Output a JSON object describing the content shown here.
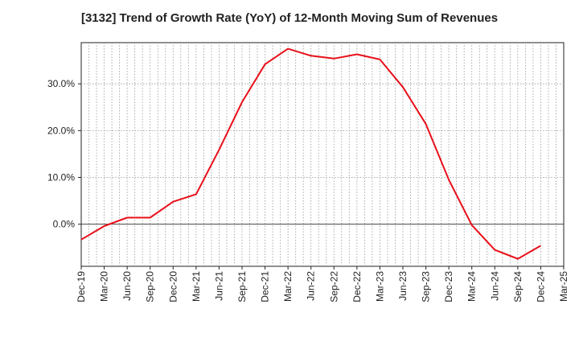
{
  "chart_data": {
    "type": "line",
    "title": "[3132]  Trend of Growth Rate (YoY) of 12-Month Moving Sum of Revenues",
    "xlabel": "",
    "ylabel": "",
    "x_tick_labels": [
      "Dec-19",
      "Mar-20",
      "Jun-20",
      "Sep-20",
      "Dec-20",
      "Mar-21",
      "Jun-21",
      "Sep-21",
      "Dec-21",
      "Mar-22",
      "Jun-22",
      "Sep-22",
      "Dec-22",
      "Mar-23",
      "Jun-23",
      "Sep-23",
      "Dec-23",
      "Mar-24",
      "Jun-24",
      "Sep-24",
      "Dec-24",
      "Mar-25"
    ],
    "y_ticks": [
      0,
      10,
      20,
      30
    ],
    "y_tick_labels": [
      "0.0%",
      "10.0%",
      "20.0%",
      "30.0%"
    ],
    "ylim": [
      -9,
      38.8
    ],
    "grid": true,
    "series": [
      {
        "color": "#e8101a",
        "x": [
          "Dec-19",
          "Mar-20",
          "Jun-20",
          "Sep-20",
          "Dec-20",
          "Mar-21",
          "Jun-21",
          "Sep-21",
          "Dec-21",
          "Mar-22",
          "Jun-22",
          "Sep-22",
          "Dec-22",
          "Mar-23",
          "Jun-23",
          "Sep-23",
          "Dec-23",
          "Mar-24",
          "Jun-24",
          "Sep-24",
          "Dec-24"
        ],
        "values": [
          -3.3,
          -0.4,
          1.4,
          1.4,
          4.8,
          6.4,
          15.9,
          26.1,
          34.2,
          37.5,
          36.0,
          35.4,
          36.3,
          35.2,
          29.3,
          21.4,
          9.5,
          -0.2,
          -5.5,
          -7.4,
          -4.6
        ]
      }
    ]
  }
}
